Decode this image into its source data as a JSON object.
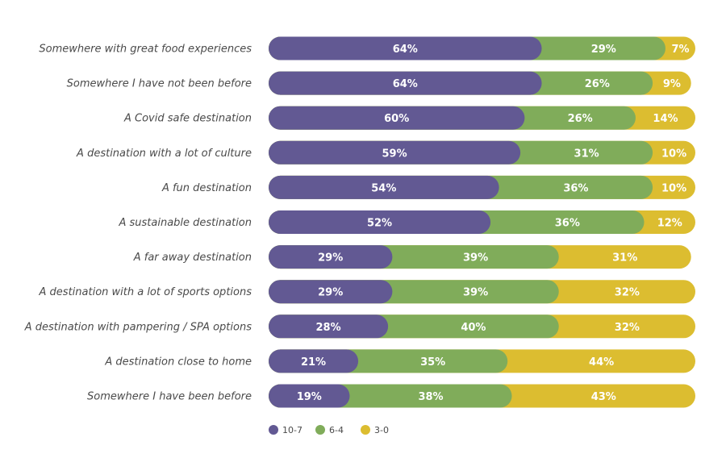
{
  "chart_data": {
    "type": "bar",
    "orientation": "horizontal",
    "stacked": true,
    "title": "",
    "xlabel": "",
    "ylabel": "",
    "xlim": [
      0,
      100
    ],
    "grid": false,
    "legend_position": "bottom-center",
    "categories": [
      "Somewhere with great food experiences",
      "Somewhere I have not been before",
      "A Covid safe destination",
      "A destination with a lot of culture",
      "A fun destination",
      "A sustainable destination",
      "A far away destination",
      "A destination with a lot of sports options",
      "A destination with pampering / SPA options",
      "A destination close to home",
      "Somewhere I have been before"
    ],
    "series": [
      {
        "name": "10-7",
        "color": "#625993",
        "values": [
          64,
          64,
          60,
          59,
          54,
          52,
          29,
          29,
          28,
          21,
          19
        ]
      },
      {
        "name": "6-4",
        "color": "#80ac5a",
        "values": [
          29,
          26,
          26,
          31,
          36,
          36,
          39,
          39,
          40,
          35,
          38
        ]
      },
      {
        "name": "3-0",
        "color": "#dcbd30",
        "values": [
          7,
          9,
          14,
          10,
          10,
          12,
          31,
          32,
          32,
          44,
          43
        ]
      }
    ],
    "value_suffix": "%"
  }
}
